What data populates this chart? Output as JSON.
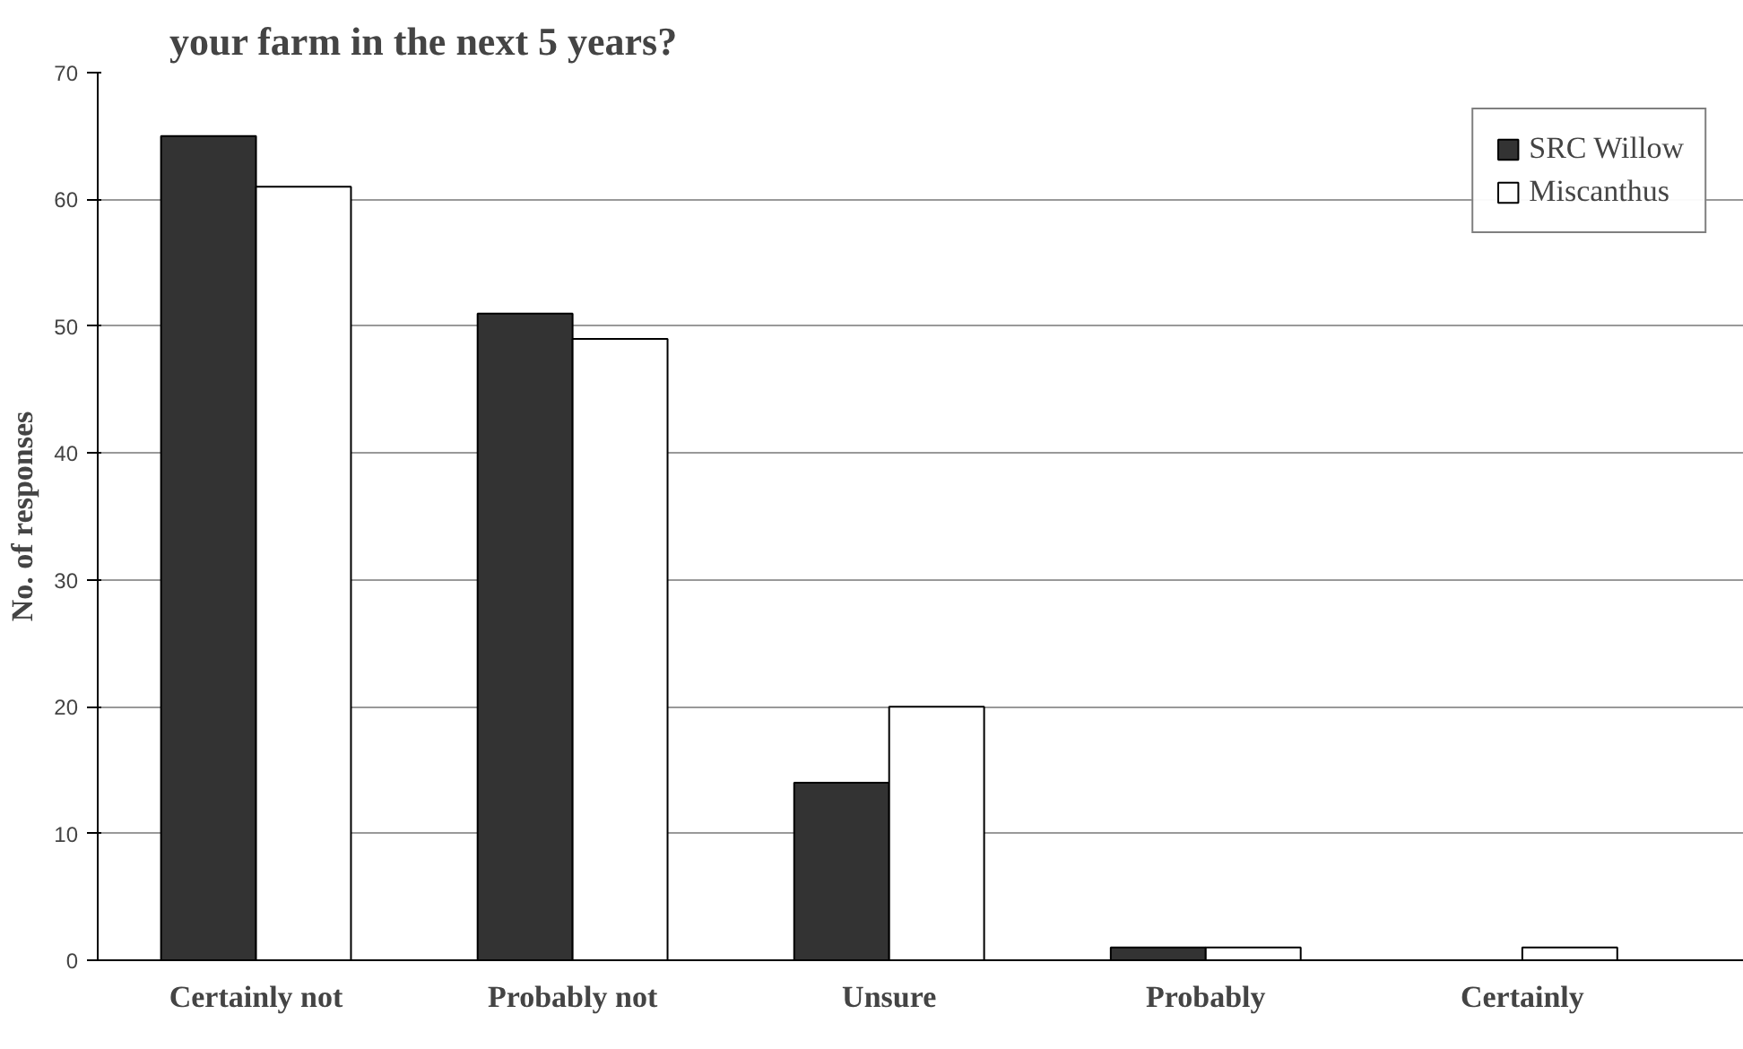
{
  "chart_data": {
    "type": "bar",
    "title": "your farm in the next 5 years?",
    "ylabel": "No. of responses",
    "categories": [
      "Certainly not",
      "Probably not",
      "Unsure",
      "Probably",
      "Certainly"
    ],
    "series": [
      {
        "name": "SRC Willow",
        "color": "#333333",
        "values": [
          65,
          51,
          14,
          1,
          0
        ]
      },
      {
        "name": "Miscanthus",
        "color": "#ffffff",
        "values": [
          61,
          49,
          20,
          1,
          1
        ]
      }
    ],
    "ylim": [
      0,
      70
    ],
    "yticks": [
      0,
      10,
      20,
      30,
      40,
      50,
      60,
      70
    ],
    "grid": "y",
    "legend": "top right"
  }
}
